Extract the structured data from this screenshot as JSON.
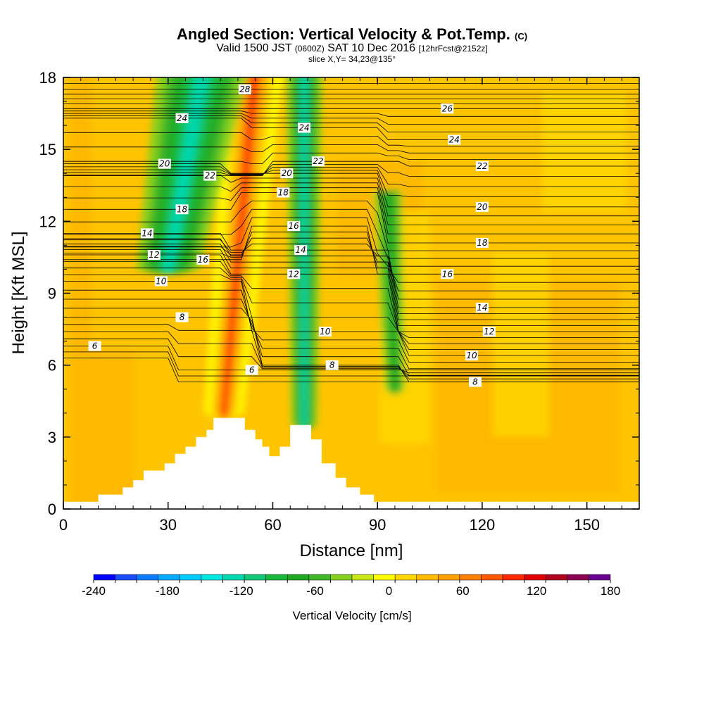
{
  "chart_data": {
    "type": "heatmap",
    "title": "Angled Section: Vertical Velocity & Pot.Temp.",
    "title_unit": "(C)",
    "subtitle_prefix": "Valid 1500 JST",
    "subtitle_utc": "(0600Z)",
    "subtitle_date": "SAT 10 Dec 2016",
    "subtitle_fcst": "[12hrFcst@2152z]",
    "slice_label": "slice X,Y= 34,23@135°",
    "xlabel": "Distance [nm]",
    "ylabel": "Height [Kft MSL]",
    "xlim": [
      0,
      165
    ],
    "ylim": [
      0,
      18
    ],
    "xticks": [
      "0",
      "30",
      "60",
      "90",
      "120",
      "150"
    ],
    "yticks": [
      "0",
      "3",
      "6",
      "9",
      "12",
      "15",
      "18"
    ],
    "colorbar": {
      "label": "Vertical Velocity [cm/s]",
      "range": [
        -240,
        180
      ],
      "step": 20,
      "tick_labels": [
        "-240",
        "-180",
        "-120",
        "-60",
        "0",
        "60",
        "120",
        "180"
      ],
      "colors": [
        "#0000ff",
        "#1a4dff",
        "#0a7dff",
        "#00aaff",
        "#00ccff",
        "#00e6e0",
        "#00d8b0",
        "#10c877",
        "#1ab83a",
        "#20a820",
        "#40b828",
        "#88d020",
        "#c8e818",
        "#ffff00",
        "#ffd700",
        "#ffbb00",
        "#ffa000",
        "#ff8000",
        "#ff5a00",
        "#ff2800",
        "#e00000",
        "#b00020",
        "#8c0050",
        "#6a0090"
      ]
    },
    "terrain_kft": [
      [
        0,
        0.3
      ],
      [
        10,
        0.3
      ],
      [
        10,
        0.6
      ],
      [
        17,
        0.6
      ],
      [
        17,
        0.9
      ],
      [
        20,
        0.9
      ],
      [
        20,
        1.2
      ],
      [
        23,
        1.2
      ],
      [
        23,
        1.6
      ],
      [
        29,
        1.6
      ],
      [
        29,
        1.9
      ],
      [
        32,
        1.9
      ],
      [
        32,
        2.3
      ],
      [
        35,
        2.3
      ],
      [
        35,
        2.6
      ],
      [
        38,
        2.6
      ],
      [
        38,
        3.0
      ],
      [
        41,
        3.0
      ],
      [
        41,
        3.3
      ],
      [
        43,
        3.3
      ],
      [
        43,
        3.8
      ],
      [
        52,
        3.8
      ],
      [
        52,
        3.3
      ],
      [
        55,
        3.3
      ],
      [
        55,
        2.9
      ],
      [
        57,
        2.9
      ],
      [
        57,
        2.6
      ],
      [
        59,
        2.6
      ],
      [
        59,
        2.2
      ],
      [
        62,
        2.2
      ],
      [
        62,
        2.6
      ],
      [
        65,
        2.6
      ],
      [
        65,
        3.5
      ],
      [
        71,
        3.5
      ],
      [
        71,
        2.9
      ],
      [
        74,
        2.9
      ],
      [
        74,
        1.9
      ],
      [
        78,
        1.9
      ],
      [
        78,
        1.3
      ],
      [
        81,
        1.3
      ],
      [
        81,
        0.9
      ],
      [
        85,
        0.9
      ],
      [
        85,
        0.6
      ],
      [
        89,
        0.6
      ],
      [
        89,
        0.3
      ],
      [
        165,
        0.3
      ]
    ],
    "updraft_band": {
      "top": [
        55,
        18
      ],
      "bottom": [
        46,
        4
      ],
      "peak_cm_s": 140
    },
    "downdraft_bands": [
      {
        "top": [
          40,
          18
        ],
        "bottom": [
          30,
          10
        ],
        "min_cm_s": -110
      },
      {
        "top": [
          69,
          18
        ],
        "bottom": [
          69,
          3.5
        ],
        "min_cm_s": -120
      },
      {
        "top": [
          93,
          13
        ],
        "bottom": [
          95,
          5
        ],
        "min_cm_s": -60
      }
    ],
    "isentropes": [
      {
        "theta": 6,
        "labels": [
          [
            9,
            6.8
          ],
          [
            54,
            5.8
          ]
        ]
      },
      {
        "theta": 8,
        "labels": [
          [
            34,
            8.0
          ],
          [
            77,
            6.0
          ],
          [
            118,
            5.3
          ]
        ]
      },
      {
        "theta": 10,
        "labels": [
          [
            28,
            9.5
          ],
          [
            75,
            7.4
          ],
          [
            117,
            6.4
          ]
        ]
      },
      {
        "theta": 12,
        "labels": [
          [
            26,
            10.6
          ],
          [
            66,
            9.8
          ],
          [
            122,
            7.4
          ]
        ]
      },
      {
        "theta": 14,
        "labels": [
          [
            24,
            11.5
          ],
          [
            68,
            10.8
          ],
          [
            120,
            8.4
          ]
        ]
      },
      {
        "theta": 16,
        "labels": [
          [
            40,
            10.4
          ],
          [
            66,
            11.8
          ],
          [
            110,
            9.8
          ]
        ]
      },
      {
        "theta": 18,
        "labels": [
          [
            34,
            12.5
          ],
          [
            63,
            13.2
          ],
          [
            120,
            11.1
          ]
        ]
      },
      {
        "theta": 20,
        "labels": [
          [
            29,
            14.4
          ],
          [
            64,
            14.0
          ],
          [
            120,
            12.6
          ]
        ]
      },
      {
        "theta": 22,
        "labels": [
          [
            42,
            13.9
          ],
          [
            73,
            14.5
          ],
          [
            120,
            14.3
          ]
        ]
      },
      {
        "theta": 24,
        "labels": [
          [
            34,
            16.3
          ],
          [
            69,
            15.9
          ],
          [
            112,
            15.4
          ]
        ]
      },
      {
        "theta": 26,
        "labels": [
          [
            110,
            16.7
          ]
        ]
      },
      {
        "theta": 28,
        "labels": [
          [
            52,
            17.5
          ]
        ]
      }
    ]
  }
}
